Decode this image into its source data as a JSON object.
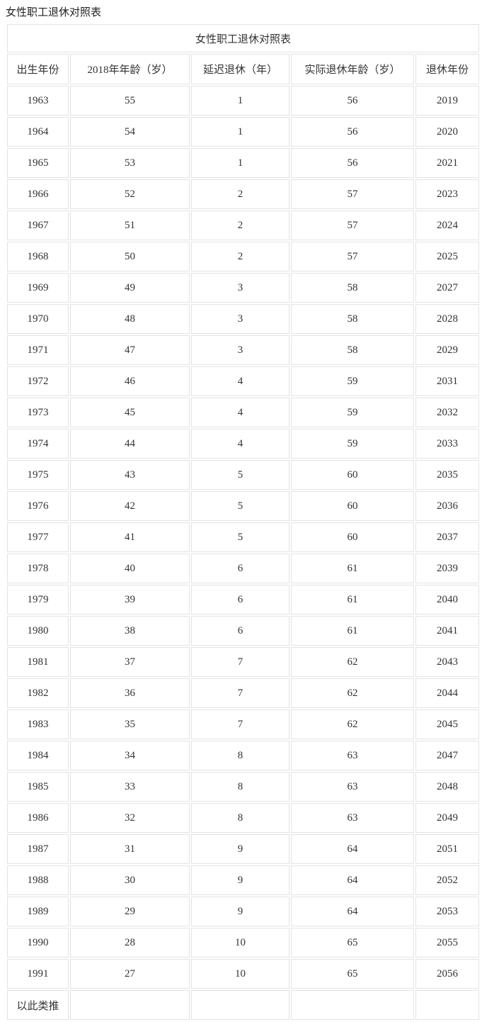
{
  "page_title": "女性职工退休对照表",
  "table": {
    "caption": "女性职工退休对照表",
    "columns": [
      "出生年份",
      "2018年年龄（岁）",
      "延迟退休（年）",
      "实际退休年龄（岁）",
      "退休年份"
    ],
    "rows": [
      [
        "1963",
        "55",
        "1",
        "56",
        "2019"
      ],
      [
        "1964",
        "54",
        "1",
        "56",
        "2020"
      ],
      [
        "1965",
        "53",
        "1",
        "56",
        "2021"
      ],
      [
        "1966",
        "52",
        "2",
        "57",
        "2023"
      ],
      [
        "1967",
        "51",
        "2",
        "57",
        "2024"
      ],
      [
        "1968",
        "50",
        "2",
        "57",
        "2025"
      ],
      [
        "1969",
        "49",
        "3",
        "58",
        "2027"
      ],
      [
        "1970",
        "48",
        "3",
        "58",
        "2028"
      ],
      [
        "1971",
        "47",
        "3",
        "58",
        "2029"
      ],
      [
        "1972",
        "46",
        "4",
        "59",
        "2031"
      ],
      [
        "1973",
        "45",
        "4",
        "59",
        "2032"
      ],
      [
        "1974",
        "44",
        "4",
        "59",
        "2033"
      ],
      [
        "1975",
        "43",
        "5",
        "60",
        "2035"
      ],
      [
        "1976",
        "42",
        "5",
        "60",
        "2036"
      ],
      [
        "1977",
        "41",
        "5",
        "60",
        "2037"
      ],
      [
        "1978",
        "40",
        "6",
        "61",
        "2039"
      ],
      [
        "1979",
        "39",
        "6",
        "61",
        "2040"
      ],
      [
        "1980",
        "38",
        "6",
        "61",
        "2041"
      ],
      [
        "1981",
        "37",
        "7",
        "62",
        "2043"
      ],
      [
        "1982",
        "36",
        "7",
        "62",
        "2044"
      ],
      [
        "1983",
        "35",
        "7",
        "62",
        "2045"
      ],
      [
        "1984",
        "34",
        "8",
        "63",
        "2047"
      ],
      [
        "1985",
        "33",
        "8",
        "63",
        "2048"
      ],
      [
        "1986",
        "32",
        "8",
        "63",
        "2049"
      ],
      [
        "1987",
        "31",
        "9",
        "64",
        "2051"
      ],
      [
        "1988",
        "30",
        "9",
        "64",
        "2052"
      ],
      [
        "1989",
        "29",
        "9",
        "64",
        "2053"
      ],
      [
        "1990",
        "28",
        "10",
        "65",
        "2055"
      ],
      [
        "1991",
        "27",
        "10",
        "65",
        "2056"
      ],
      [
        "以此类推",
        "",
        "",
        "",
        ""
      ]
    ]
  },
  "colors": {
    "text": "#333333",
    "border": "#e3e3e3",
    "background": "#ffffff"
  }
}
